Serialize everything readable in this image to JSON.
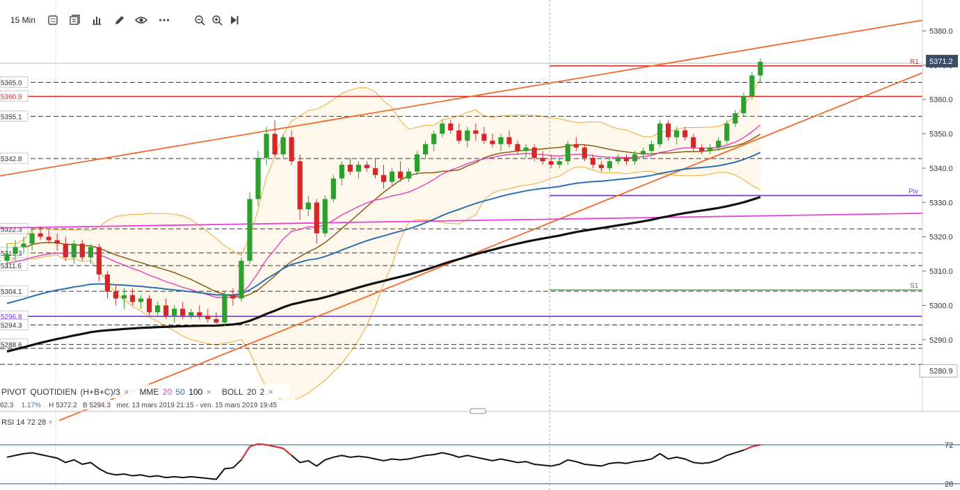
{
  "toolbar": {
    "timeframe": "15 Min",
    "icons": [
      "calculator-icon",
      "layout-icon",
      "bar-chart-icon",
      "pencil-icon",
      "eye-icon",
      "more-icon",
      "zoom-out-icon",
      "zoom-in-icon",
      "skip-end-icon"
    ]
  },
  "colors": {
    "up": "#2ca02c",
    "down": "#d62728",
    "ema20": "#e53fb5",
    "ema50": "#2a6fb0",
    "ema100": "#111111",
    "bb": "#f0a830",
    "trend": "#f06a2a",
    "pivot": "#7b2ff0",
    "pink": "#e83fd8",
    "r1": "#d03030",
    "s1": "#3aa03a",
    "rsi": "#111111",
    "rsi_ob": "#e03030"
  },
  "indicators": {
    "pivot_label": "PIVOT",
    "pivot_type": "QUOTIDIEN",
    "pivot_formula": "(H+B+C)/3",
    "mme_label": "MME",
    "mme_periods": [
      "20",
      "50",
      "100"
    ],
    "boll_label": "BOLL",
    "boll_params": [
      "20",
      "2"
    ],
    "close": "×"
  },
  "info": {
    "last_partial": "62.3",
    "change_pct": "1.17%",
    "high": "H 5372.2",
    "low": "B 5294.3",
    "range": "mer. 13 mars 2019 21:15 - ven. 15 mars 2019 19:45"
  },
  "rsi": {
    "label": "RSI",
    "period": "14",
    "upper": "72",
    "lower": "28"
  },
  "price_axis": {
    "ticks": [
      "5380.0",
      "5370.0",
      "5360.0",
      "5350.0",
      "5340.0",
      "5330.0",
      "5320.0",
      "5310.0",
      "5300.0",
      "5290.0"
    ],
    "current": "5371.2",
    "bottom_box": "5280.9"
  },
  "levels": {
    "left_labels": [
      {
        "text": "5365.0",
        "value": 5365.0
      },
      {
        "text": "5360.9",
        "value": 5360.9
      },
      {
        "text": "5355.1",
        "value": 5355.1
      },
      {
        "text": "5342.8",
        "value": 5342.8
      },
      {
        "text": "5322.3",
        "value": 5322.3
      },
      {
        "text": "5315.3",
        "value": 5315.3
      },
      {
        "text": "5311.6",
        "value": 5311.6
      },
      {
        "text": "5304.1",
        "value": 5304.1
      },
      {
        "text": "5296.8",
        "value": 5296.8
      },
      {
        "text": "5294.3",
        "value": 5294.3
      },
      {
        "text": "5288.6",
        "value": 5288.6
      }
    ],
    "r1_label": "R1",
    "r1_value": 5369.8,
    "piv_label": "Piv",
    "piv_value": 5332.0,
    "s1_label": "S1",
    "s1_value": 5304.5
  },
  "chart_data": {
    "type": "candlestick",
    "ylim": [
      5278,
      5389
    ],
    "rsi_ylim": [
      28,
      72
    ],
    "series_ohlc": [
      [
        5313,
        5318,
        5311,
        5315
      ],
      [
        5315,
        5319,
        5313,
        5317
      ],
      [
        5317,
        5320,
        5315,
        5318
      ],
      [
        5318,
        5322,
        5316,
        5321
      ],
      [
        5321,
        5323,
        5319,
        5320
      ],
      [
        5320,
        5322,
        5318,
        5319
      ],
      [
        5319,
        5321,
        5316,
        5318
      ],
      [
        5318,
        5320,
        5313,
        5314
      ],
      [
        5314,
        5319,
        5312,
        5318
      ],
      [
        5318,
        5319,
        5313,
        5314
      ],
      [
        5314,
        5318,
        5312,
        5317
      ],
      [
        5317,
        5318,
        5307,
        5309
      ],
      [
        5309,
        5310,
        5302,
        5304
      ],
      [
        5304,
        5306,
        5300,
        5302
      ],
      [
        5302,
        5305,
        5299,
        5303
      ],
      [
        5303,
        5305,
        5300,
        5301
      ],
      [
        5301,
        5303,
        5299,
        5302
      ],
      [
        5302,
        5303,
        5297,
        5298
      ],
      [
        5298,
        5301,
        5297,
        5300
      ],
      [
        5300,
        5302,
        5296,
        5297
      ],
      [
        5297,
        5300,
        5295,
        5299
      ],
      [
        5299,
        5301,
        5296,
        5297
      ],
      [
        5297,
        5299,
        5296,
        5298
      ],
      [
        5298,
        5300,
        5296,
        5297
      ],
      [
        5297,
        5299,
        5295,
        5296
      ],
      [
        5296,
        5298,
        5294,
        5295
      ],
      [
        5295,
        5304,
        5294,
        5303
      ],
      [
        5303,
        5305,
        5300,
        5302
      ],
      [
        5302,
        5314,
        5301,
        5313
      ],
      [
        5313,
        5333,
        5312,
        5331
      ],
      [
        5331,
        5345,
        5329,
        5343
      ],
      [
        5343,
        5352,
        5341,
        5350
      ],
      [
        5350,
        5354,
        5343,
        5344
      ],
      [
        5344,
        5350,
        5343,
        5349
      ],
      [
        5349,
        5351,
        5341,
        5342
      ],
      [
        5342,
        5344,
        5325,
        5328
      ],
      [
        5328,
        5332,
        5326,
        5330
      ],
      [
        5330,
        5331,
        5318,
        5321
      ],
      [
        5321,
        5332,
        5320,
        5331
      ],
      [
        5331,
        5338,
        5330,
        5337
      ],
      [
        5337,
        5342,
        5335,
        5341
      ],
      [
        5341,
        5343,
        5338,
        5339
      ],
      [
        5339,
        5342,
        5337,
        5341
      ],
      [
        5341,
        5342,
        5339,
        5340
      ],
      [
        5340,
        5343,
        5337,
        5338
      ],
      [
        5338,
        5341,
        5334,
        5336
      ],
      [
        5336,
        5340,
        5335,
        5339
      ],
      [
        5339,
        5342,
        5336,
        5337
      ],
      [
        5337,
        5340,
        5336,
        5339
      ],
      [
        5339,
        5345,
        5338,
        5344
      ],
      [
        5344,
        5348,
        5343,
        5347
      ],
      [
        5347,
        5351,
        5345,
        5350
      ],
      [
        5350,
        5354,
        5349,
        5353
      ],
      [
        5353,
        5354,
        5350,
        5351
      ],
      [
        5351,
        5353,
        5347,
        5348
      ],
      [
        5348,
        5352,
        5346,
        5351
      ],
      [
        5351,
        5353,
        5348,
        5350
      ],
      [
        5350,
        5352,
        5347,
        5348
      ],
      [
        5348,
        5350,
        5346,
        5347
      ],
      [
        5347,
        5350,
        5345,
        5349
      ],
      [
        5349,
        5351,
        5346,
        5347
      ],
      [
        5347,
        5348,
        5344,
        5345
      ],
      [
        5345,
        5347,
        5343,
        5346
      ],
      [
        5346,
        5347,
        5342,
        5343
      ],
      [
        5343,
        5345,
        5341,
        5342
      ],
      [
        5342,
        5344,
        5340,
        5341
      ],
      [
        5341,
        5343,
        5340,
        5342
      ],
      [
        5342,
        5348,
        5341,
        5347
      ],
      [
        5347,
        5349,
        5345,
        5346
      ],
      [
        5346,
        5347,
        5342,
        5343
      ],
      [
        5343,
        5344,
        5340,
        5341
      ],
      [
        5341,
        5342,
        5339,
        5340
      ],
      [
        5340,
        5343,
        5339,
        5342
      ],
      [
        5342,
        5344,
        5341,
        5343
      ],
      [
        5343,
        5344,
        5341,
        5342
      ],
      [
        5342,
        5345,
        5341,
        5344
      ],
      [
        5344,
        5346,
        5343,
        5345
      ],
      [
        5345,
        5348,
        5344,
        5347
      ],
      [
        5347,
        5354,
        5346,
        5353
      ],
      [
        5353,
        5354,
        5348,
        5349
      ],
      [
        5349,
        5352,
        5347,
        5351
      ],
      [
        5351,
        5352,
        5348,
        5349
      ],
      [
        5349,
        5350,
        5345,
        5346
      ],
      [
        5346,
        5347,
        5344,
        5345
      ],
      [
        5345,
        5347,
        5344,
        5346
      ],
      [
        5346,
        5349,
        5345,
        5348
      ],
      [
        5348,
        5354,
        5347,
        5353
      ],
      [
        5353,
        5357,
        5352,
        5356
      ],
      [
        5356,
        5362,
        5355,
        5361
      ],
      [
        5361,
        5368,
        5360,
        5367
      ],
      [
        5367,
        5372,
        5365,
        5371
      ]
    ],
    "rsi_values": [
      58,
      60,
      62,
      63,
      61,
      59,
      57,
      52,
      55,
      50,
      52,
      45,
      40,
      38,
      39,
      37,
      38,
      36,
      37,
      35,
      36,
      35,
      36,
      35,
      34,
      33,
      45,
      46,
      55,
      70,
      73,
      72,
      70,
      68,
      60,
      52,
      54,
      48,
      55,
      58,
      60,
      58,
      59,
      58,
      56,
      54,
      56,
      55,
      56,
      58,
      60,
      61,
      63,
      61,
      58,
      60,
      58,
      56,
      54,
      56,
      54,
      52,
      53,
      50,
      49,
      48,
      50,
      55,
      53,
      50,
      49,
      48,
      51,
      52,
      51,
      53,
      54,
      56,
      62,
      56,
      58,
      56,
      52,
      51,
      52,
      55,
      60,
      63,
      66,
      70,
      72
    ]
  }
}
